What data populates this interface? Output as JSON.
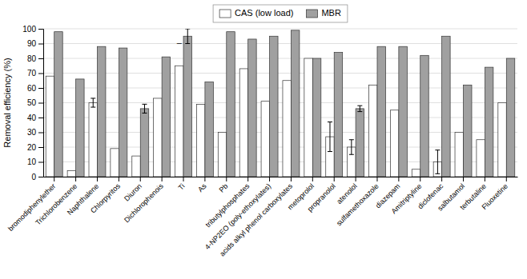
{
  "chart_data": {
    "type": "bar",
    "ylabel": "Removal efficiency (%)",
    "categories": [
      "bromodiphenylether",
      "Trichlorobenzene",
      "Naphthalene",
      "Chlorpyritos",
      "Diuron",
      "Dichlorophenois",
      "Ti",
      "As",
      "Pb",
      "tributylphosphates",
      "4-NP2EO (poly-ethoxylates)",
      "acids alkyl phenol carboxylates",
      "metoprolol",
      "propranolol",
      "atenolol",
      "sulfamethoxazole",
      "diazepam",
      "Amitriptyline",
      "diclofenac",
      "salbutamol",
      "terbutaline",
      "Fluoxetine"
    ],
    "series": [
      {
        "name": "CAS (low load)",
        "color": "white",
        "values": [
          68,
          4,
          50,
          19,
          14,
          53,
          75,
          49,
          30,
          73,
          51,
          65,
          80,
          27,
          20,
          62,
          45,
          5,
          10,
          30,
          25,
          50
        ],
        "errors": [
          0,
          0,
          3,
          0,
          0,
          0,
          0,
          0,
          0,
          0,
          0,
          0,
          0,
          10,
          5,
          0,
          0,
          0,
          8,
          0,
          0,
          0
        ]
      },
      {
        "name": "MBR",
        "color": "#a0a0a0",
        "values": [
          98,
          66,
          88,
          87,
          46,
          81,
          95,
          64,
          98,
          93,
          95,
          99,
          80,
          84,
          46,
          88,
          88,
          82,
          95,
          62,
          74,
          80
        ],
        "errors": [
          0,
          0,
          0,
          0,
          3,
          0,
          5,
          0,
          0,
          0,
          0,
          0,
          0,
          0,
          2,
          0,
          0,
          0,
          0,
          0,
          0,
          0
        ]
      }
    ],
    "ylim": [
      0,
      100
    ],
    "yticks": [
      0,
      10,
      20,
      30,
      40,
      50,
      60,
      70,
      80,
      90,
      100
    ],
    "grid": true,
    "legend": "top",
    "annotations": [
      {
        "text": "–",
        "category": "Ti",
        "y": 90
      }
    ]
  }
}
